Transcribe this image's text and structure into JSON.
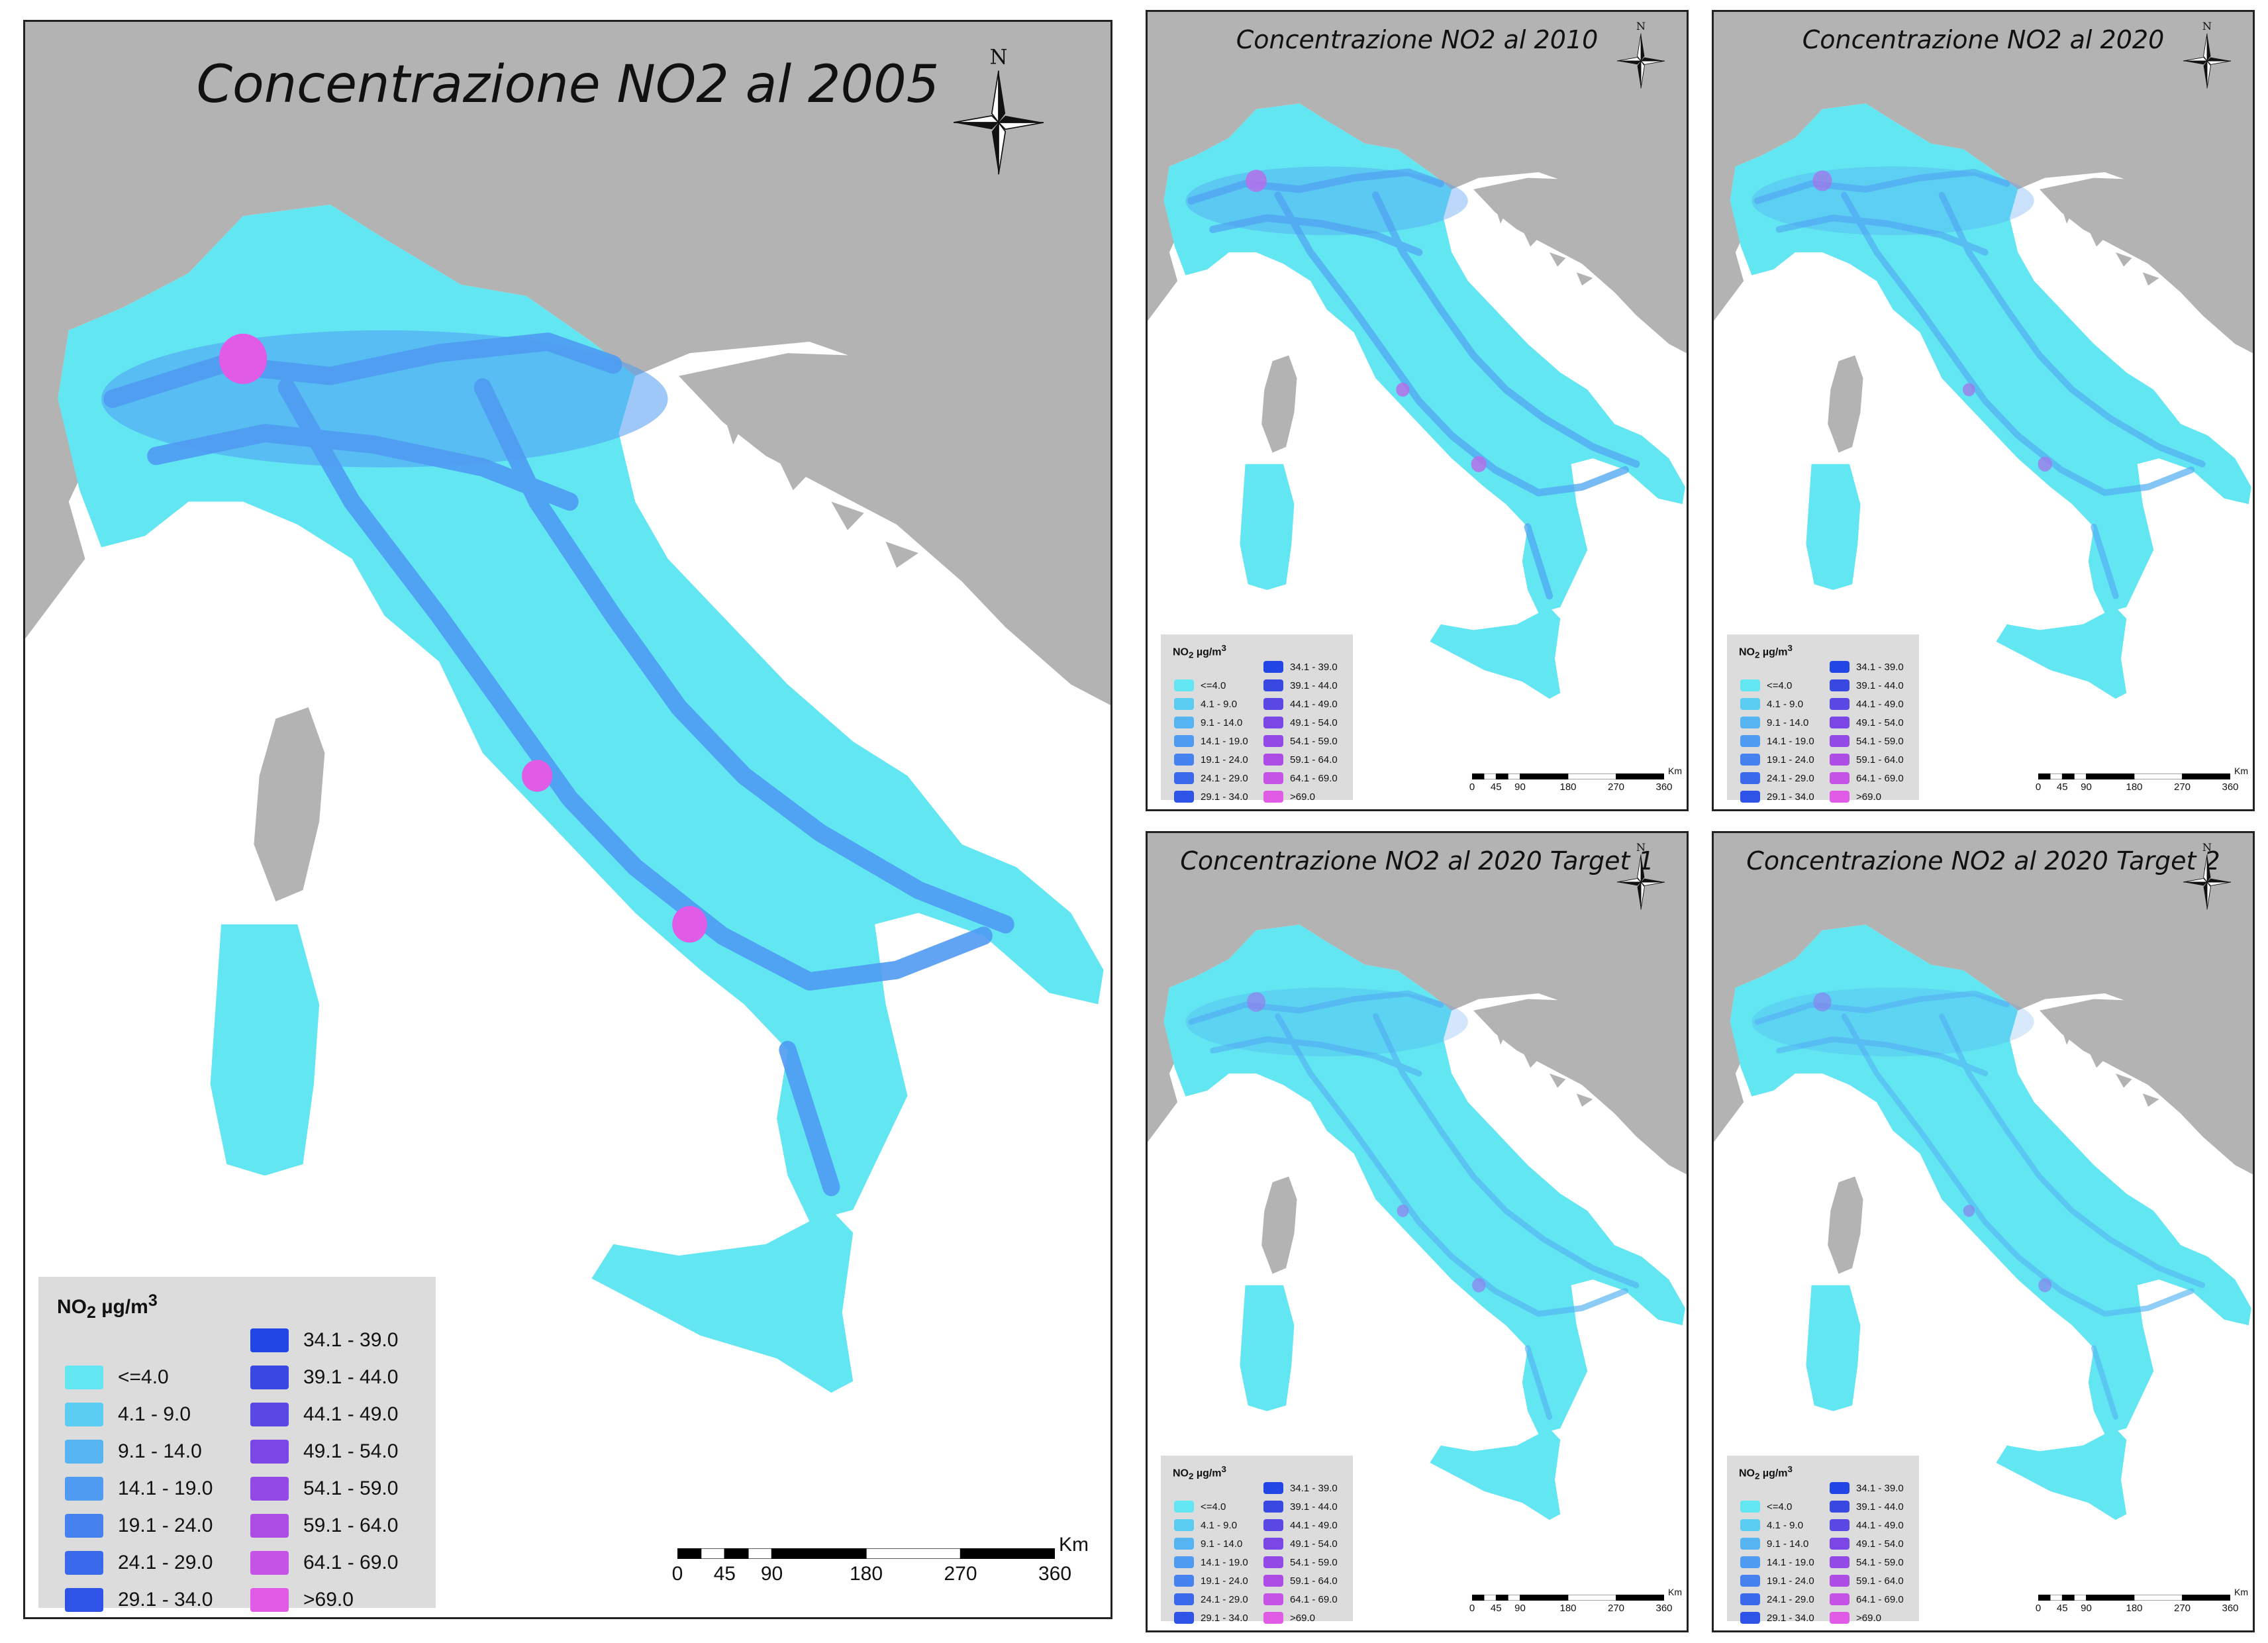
{
  "legend": {
    "title_main": "NO",
    "title_sub": "2",
    "title_unit": " µg/m",
    "title_sup": "3",
    "classes": [
      {
        "label": "<=4.0",
        "color": "#62e6f2"
      },
      {
        "label": "4.1 - 9.0",
        "color": "#5ccdf2"
      },
      {
        "label": "9.1 - 14.0",
        "color": "#56b4f2"
      },
      {
        "label": "14.1 - 19.0",
        "color": "#4f9bf2"
      },
      {
        "label": "19.1 - 24.0",
        "color": "#4682ef"
      },
      {
        "label": "24.1 - 29.0",
        "color": "#3b69eb"
      },
      {
        "label": "29.1 - 34.0",
        "color": "#2d54e6"
      },
      {
        "label": "34.1 - 39.0",
        "color": "#2246e6"
      },
      {
        "label": "39.1 - 44.0",
        "color": "#3a48e2"
      },
      {
        "label": "44.1 - 49.0",
        "color": "#5a47e4"
      },
      {
        "label": "49.1 - 54.0",
        "color": "#7a47e6"
      },
      {
        "label": "54.1 - 59.0",
        "color": "#9249e6"
      },
      {
        "label": "59.1 - 64.0",
        "color": "#ad4de6"
      },
      {
        "label": "64.1 - 69.0",
        "color": "#c453e6"
      },
      {
        "label": ">69.0",
        "color": "#e15ce6"
      }
    ]
  },
  "scale": {
    "unit": "Km",
    "ticks": [
      "0",
      "45",
      "90",
      "180",
      "270",
      "360"
    ]
  },
  "compass": {
    "north_label": "N"
  },
  "colors": {
    "sea": "#ffffff",
    "foreign_land": "#b3b3b3",
    "base_land": "#62e6f2",
    "corridor": "#4f9bf2",
    "hotspot": "#e15ce6"
  },
  "maps": [
    {
      "title": "Concentrazione NO2 al 2005",
      "intensity": 1.0
    },
    {
      "title": "Concentrazione NO2 al 2010",
      "intensity": 0.7
    },
    {
      "title": "Concentrazione NO2 al 2020",
      "intensity": 0.55
    },
    {
      "title": "Concentrazione NO2 al 2020 Target 1",
      "intensity": 0.45
    },
    {
      "title": "Concentrazione NO2 al 2020 Target 2",
      "intensity": 0.4
    }
  ]
}
